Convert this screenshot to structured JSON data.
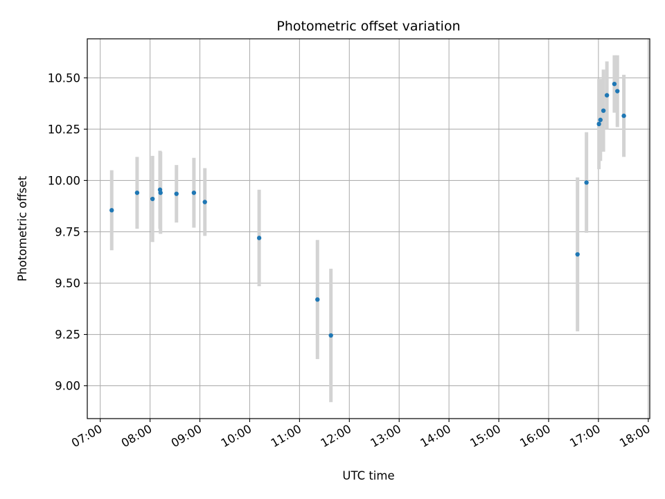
{
  "chart_data": {
    "type": "scatter",
    "title": "Photometric offset variation",
    "xlabel": "UTC time",
    "ylabel": "Photometric offset",
    "x_axis_unit": "UTC hour of day",
    "xlim": [
      6.74,
      18.03
    ],
    "ylim": [
      8.84,
      10.69
    ],
    "x_ticks": [
      {
        "value": 7,
        "label": "07:00"
      },
      {
        "value": 8,
        "label": "08:00"
      },
      {
        "value": 9,
        "label": "09:00"
      },
      {
        "value": 10,
        "label": "10:00"
      },
      {
        "value": 11,
        "label": "11:00"
      },
      {
        "value": 12,
        "label": "12:00"
      },
      {
        "value": 13,
        "label": "13:00"
      },
      {
        "value": 14,
        "label": "14:00"
      },
      {
        "value": 15,
        "label": "15:00"
      },
      {
        "value": 16,
        "label": "16:00"
      },
      {
        "value": 17,
        "label": "17:00"
      },
      {
        "value": 18,
        "label": "18:00"
      }
    ],
    "y_ticks": [
      {
        "value": 9.0,
        "label": "9.00"
      },
      {
        "value": 9.25,
        "label": "9.25"
      },
      {
        "value": 9.5,
        "label": "9.50"
      },
      {
        "value": 9.75,
        "label": "9.75"
      },
      {
        "value": 10.0,
        "label": "10.00"
      },
      {
        "value": 10.25,
        "label": "10.25"
      },
      {
        "value": 10.5,
        "label": "10.50"
      }
    ],
    "grid": true,
    "marker_color": "#1f77b4",
    "errorbar_color": "#d3d3d3",
    "points": [
      {
        "x": 7.23,
        "y": 9.855,
        "err": 0.195
      },
      {
        "x": 7.74,
        "y": 9.94,
        "err": 0.175
      },
      {
        "x": 8.05,
        "y": 9.91,
        "err": 0.21
      },
      {
        "x": 8.2,
        "y": 9.955,
        "err": 0.19
      },
      {
        "x": 8.21,
        "y": 9.94,
        "err": 0.2
      },
      {
        "x": 8.53,
        "y": 9.935,
        "err": 0.14
      },
      {
        "x": 8.88,
        "y": 9.94,
        "err": 0.17
      },
      {
        "x": 9.1,
        "y": 9.895,
        "err": 0.165
      },
      {
        "x": 10.19,
        "y": 9.72,
        "err": 0.235
      },
      {
        "x": 11.36,
        "y": 9.42,
        "err": 0.29
      },
      {
        "x": 11.63,
        "y": 9.245,
        "err": 0.325
      },
      {
        "x": 16.58,
        "y": 9.64,
        "err": 0.375
      },
      {
        "x": 16.76,
        "y": 9.99,
        "err": 0.245
      },
      {
        "x": 17.01,
        "y": 10.275,
        "err": 0.22
      },
      {
        "x": 17.04,
        "y": 10.295,
        "err": 0.2
      },
      {
        "x": 17.1,
        "y": 10.34,
        "err": 0.2
      },
      {
        "x": 17.17,
        "y": 10.415,
        "err": 0.165
      },
      {
        "x": 17.32,
        "y": 10.47,
        "err": 0.14
      },
      {
        "x": 17.38,
        "y": 10.435,
        "err": 0.175
      },
      {
        "x": 17.51,
        "y": 10.315,
        "err": 0.2
      }
    ]
  }
}
